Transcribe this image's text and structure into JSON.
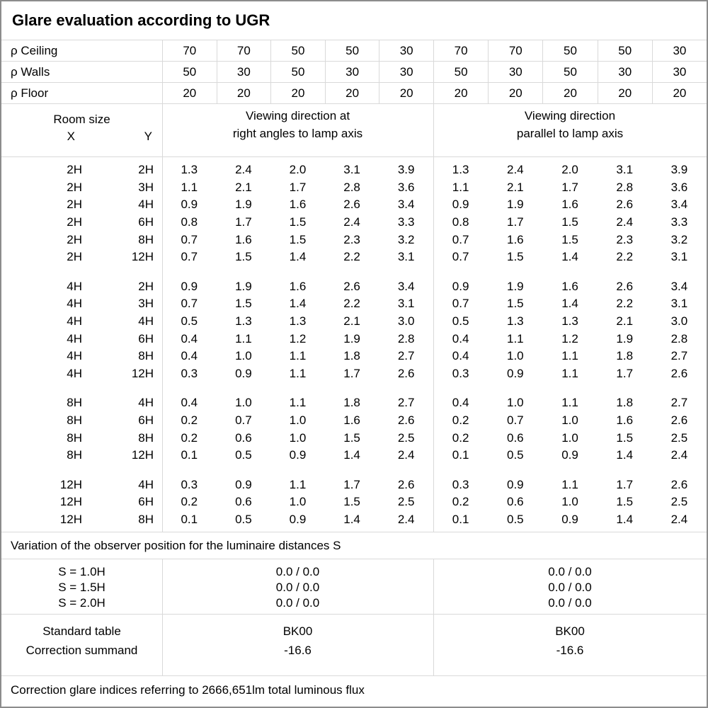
{
  "title": "Glare evaluation according to UGR",
  "reflectance_rows": [
    {
      "label": "ρ Ceiling",
      "values": [
        "70",
        "70",
        "50",
        "50",
        "30",
        "70",
        "70",
        "50",
        "50",
        "30"
      ]
    },
    {
      "label": "ρ Walls",
      "values": [
        "50",
        "30",
        "50",
        "30",
        "30",
        "50",
        "30",
        "50",
        "30",
        "30"
      ]
    },
    {
      "label": "ρ Floor",
      "values": [
        "20",
        "20",
        "20",
        "20",
        "20",
        "20",
        "20",
        "20",
        "20",
        "20"
      ]
    }
  ],
  "header": {
    "room_size": "Room size",
    "x": "X",
    "y": "Y",
    "right_angles": [
      "Viewing direction at",
      "right angles to lamp axis"
    ],
    "parallel": [
      "Viewing direction",
      "parallel to lamp axis"
    ]
  },
  "ugr_table": {
    "blocks": [
      {
        "rows": [
          {
            "x": "2H",
            "y": "2H",
            "right_angles": [
              "1.3",
              "2.4",
              "2.0",
              "3.1",
              "3.9"
            ],
            "parallel": [
              "1.3",
              "2.4",
              "2.0",
              "3.1",
              "3.9"
            ]
          },
          {
            "x": "2H",
            "y": "3H",
            "right_angles": [
              "1.1",
              "2.1",
              "1.7",
              "2.8",
              "3.6"
            ],
            "parallel": [
              "1.1",
              "2.1",
              "1.7",
              "2.8",
              "3.6"
            ]
          },
          {
            "x": "2H",
            "y": "4H",
            "right_angles": [
              "0.9",
              "1.9",
              "1.6",
              "2.6",
              "3.4"
            ],
            "parallel": [
              "0.9",
              "1.9",
              "1.6",
              "2.6",
              "3.4"
            ]
          },
          {
            "x": "2H",
            "y": "6H",
            "right_angles": [
              "0.8",
              "1.7",
              "1.5",
              "2.4",
              "3.3"
            ],
            "parallel": [
              "0.8",
              "1.7",
              "1.5",
              "2.4",
              "3.3"
            ]
          },
          {
            "x": "2H",
            "y": "8H",
            "right_angles": [
              "0.7",
              "1.6",
              "1.5",
              "2.3",
              "3.2"
            ],
            "parallel": [
              "0.7",
              "1.6",
              "1.5",
              "2.3",
              "3.2"
            ]
          },
          {
            "x": "2H",
            "y": "12H",
            "right_angles": [
              "0.7",
              "1.5",
              "1.4",
              "2.2",
              "3.1"
            ],
            "parallel": [
              "0.7",
              "1.5",
              "1.4",
              "2.2",
              "3.1"
            ]
          }
        ]
      },
      {
        "rows": [
          {
            "x": "4H",
            "y": "2H",
            "right_angles": [
              "0.9",
              "1.9",
              "1.6",
              "2.6",
              "3.4"
            ],
            "parallel": [
              "0.9",
              "1.9",
              "1.6",
              "2.6",
              "3.4"
            ]
          },
          {
            "x": "4H",
            "y": "3H",
            "right_angles": [
              "0.7",
              "1.5",
              "1.4",
              "2.2",
              "3.1"
            ],
            "parallel": [
              "0.7",
              "1.5",
              "1.4",
              "2.2",
              "3.1"
            ]
          },
          {
            "x": "4H",
            "y": "4H",
            "right_angles": [
              "0.5",
              "1.3",
              "1.3",
              "2.1",
              "3.0"
            ],
            "parallel": [
              "0.5",
              "1.3",
              "1.3",
              "2.1",
              "3.0"
            ]
          },
          {
            "x": "4H",
            "y": "6H",
            "right_angles": [
              "0.4",
              "1.1",
              "1.2",
              "1.9",
              "2.8"
            ],
            "parallel": [
              "0.4",
              "1.1",
              "1.2",
              "1.9",
              "2.8"
            ]
          },
          {
            "x": "4H",
            "y": "8H",
            "right_angles": [
              "0.4",
              "1.0",
              "1.1",
              "1.8",
              "2.7"
            ],
            "parallel": [
              "0.4",
              "1.0",
              "1.1",
              "1.8",
              "2.7"
            ]
          },
          {
            "x": "4H",
            "y": "12H",
            "right_angles": [
              "0.3",
              "0.9",
              "1.1",
              "1.7",
              "2.6"
            ],
            "parallel": [
              "0.3",
              "0.9",
              "1.1",
              "1.7",
              "2.6"
            ]
          }
        ]
      },
      {
        "rows": [
          {
            "x": "8H",
            "y": "4H",
            "right_angles": [
              "0.4",
              "1.0",
              "1.1",
              "1.8",
              "2.7"
            ],
            "parallel": [
              "0.4",
              "1.0",
              "1.1",
              "1.8",
              "2.7"
            ]
          },
          {
            "x": "8H",
            "y": "6H",
            "right_angles": [
              "0.2",
              "0.7",
              "1.0",
              "1.6",
              "2.6"
            ],
            "parallel": [
              "0.2",
              "0.7",
              "1.0",
              "1.6",
              "2.6"
            ]
          },
          {
            "x": "8H",
            "y": "8H",
            "right_angles": [
              "0.2",
              "0.6",
              "1.0",
              "1.5",
              "2.5"
            ],
            "parallel": [
              "0.2",
              "0.6",
              "1.0",
              "1.5",
              "2.5"
            ]
          },
          {
            "x": "8H",
            "y": "12H",
            "right_angles": [
              "0.1",
              "0.5",
              "0.9",
              "1.4",
              "2.4"
            ],
            "parallel": [
              "0.1",
              "0.5",
              "0.9",
              "1.4",
              "2.4"
            ]
          }
        ]
      },
      {
        "rows": [
          {
            "x": "12H",
            "y": "4H",
            "right_angles": [
              "0.3",
              "0.9",
              "1.1",
              "1.7",
              "2.6"
            ],
            "parallel": [
              "0.3",
              "0.9",
              "1.1",
              "1.7",
              "2.6"
            ]
          },
          {
            "x": "12H",
            "y": "6H",
            "right_angles": [
              "0.2",
              "0.6",
              "1.0",
              "1.5",
              "2.5"
            ],
            "parallel": [
              "0.2",
              "0.6",
              "1.0",
              "1.5",
              "2.5"
            ]
          },
          {
            "x": "12H",
            "y": "8H",
            "right_angles": [
              "0.1",
              "0.5",
              "0.9",
              "1.4",
              "2.4"
            ],
            "parallel": [
              "0.1",
              "0.5",
              "0.9",
              "1.4",
              "2.4"
            ]
          }
        ]
      }
    ]
  },
  "variation_note": "Variation of the observer position for the luminaire distances S",
  "spacing_rows": [
    {
      "label": "S = 1.0H",
      "right_angles": "0.0 / 0.0",
      "parallel": "0.0 / 0.0"
    },
    {
      "label": "S = 1.5H",
      "right_angles": "0.0 / 0.0",
      "parallel": "0.0 / 0.0"
    },
    {
      "label": "S = 2.0H",
      "right_angles": "0.0 / 0.0",
      "parallel": "0.0 / 0.0"
    }
  ],
  "summary_rows": [
    {
      "label": "Standard table",
      "right_angles": "BK00",
      "parallel": "BK00"
    },
    {
      "label": "Correction summand",
      "right_angles": "-16.6",
      "parallel": "-16.6"
    }
  ],
  "footer_note": "Correction glare indices referring to 2666,651lm total luminous flux"
}
